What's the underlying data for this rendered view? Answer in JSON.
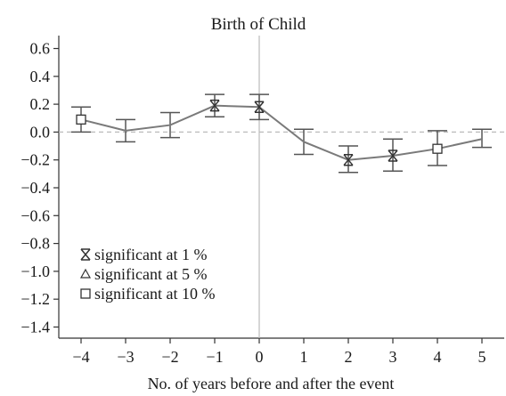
{
  "chart_data": {
    "type": "line",
    "title": "Birth of Child",
    "xlabel": "No. of years before and after the event",
    "ylabel": "",
    "x": [
      -4,
      -3,
      -2,
      -1,
      0,
      1,
      2,
      3,
      4,
      5
    ],
    "series": [
      {
        "values": [
          0.09,
          0.01,
          0.05,
          0.19,
          0.18,
          -0.07,
          -0.2,
          -0.17,
          -0.12,
          -0.05
        ],
        "ci_low": [
          0.0,
          -0.07,
          -0.04,
          0.11,
          0.09,
          -0.16,
          -0.29,
          -0.28,
          -0.24,
          -0.11
        ],
        "ci_high": [
          0.18,
          0.09,
          0.14,
          0.27,
          0.27,
          0.02,
          -0.1,
          -0.05,
          0.01,
          0.02
        ],
        "significance": [
          "10%",
          "none",
          "none",
          "1%",
          "1%",
          "none",
          "1%",
          "1%",
          "10%",
          "none"
        ]
      }
    ],
    "xlim": [
      -4.5,
      5.5
    ],
    "ylim": [
      -1.48,
      0.68
    ],
    "xticks": [
      "-4",
      "-3",
      "-2",
      "-1",
      "0",
      "1",
      "2",
      "3",
      "4",
      "5"
    ],
    "yticks": [
      "0.6",
      "0.4",
      "0.2",
      "0.0",
      "-0.2",
      "-0.4",
      "-0.6",
      "-0.8",
      "-1.0",
      "-1.2",
      "-1.4"
    ],
    "reference_lines": {
      "horizontal_zero": "dashed",
      "vertical_zero": "solid"
    },
    "grid": false,
    "legend": {
      "placement": "bottom-left",
      "entries": [
        {
          "marker": "hourglass-x",
          "label": "significant at 1 %"
        },
        {
          "marker": "triangle",
          "label": "significant at 5 %"
        },
        {
          "marker": "square",
          "label": "significant at 10 %"
        }
      ]
    },
    "colors": {
      "line": "#7a7a7a",
      "errorbar": "#555555",
      "axis": "#333333",
      "reference": "#bbbbbb"
    }
  }
}
